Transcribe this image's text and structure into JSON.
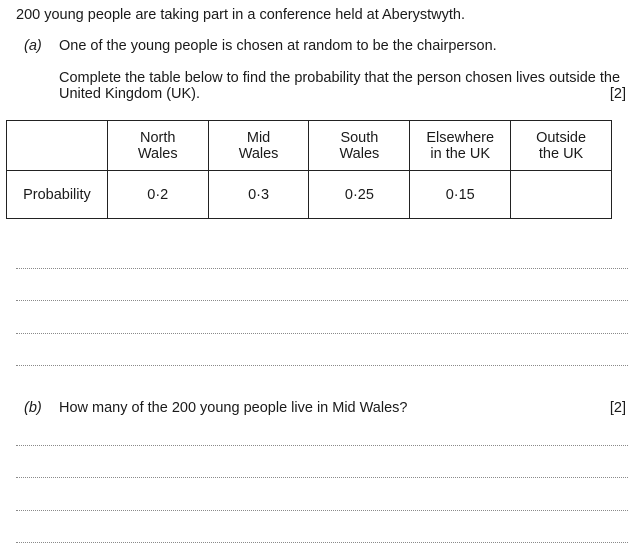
{
  "intro": "200 young people are taking part in a conference held at Aberystwyth.",
  "part_a": {
    "label": "(a)",
    "question": "One of the young people is chosen at random to be the chairperson.",
    "instruction_line1": "Complete the table below to find the probability that the person chosen lives outside the",
    "instruction_line2": "United Kingdom (UK).",
    "marks": "[2]"
  },
  "table": {
    "headers": [
      {
        "line1": "",
        "line2": ""
      },
      {
        "line1": "North",
        "line2": "Wales"
      },
      {
        "line1": "Mid",
        "line2": "Wales"
      },
      {
        "line1": "South",
        "line2": "Wales"
      },
      {
        "line1": "Elsewhere",
        "line2": "in the UK"
      },
      {
        "line1": "Outside",
        "line2": "the UK"
      }
    ],
    "row_label": "Probability",
    "values": [
      "0·2",
      "0·3",
      "0·25",
      "0·15",
      ""
    ]
  },
  "part_b": {
    "label": "(b)",
    "question": "How many of the 200 young people live in Mid Wales?",
    "marks": "[2]"
  }
}
